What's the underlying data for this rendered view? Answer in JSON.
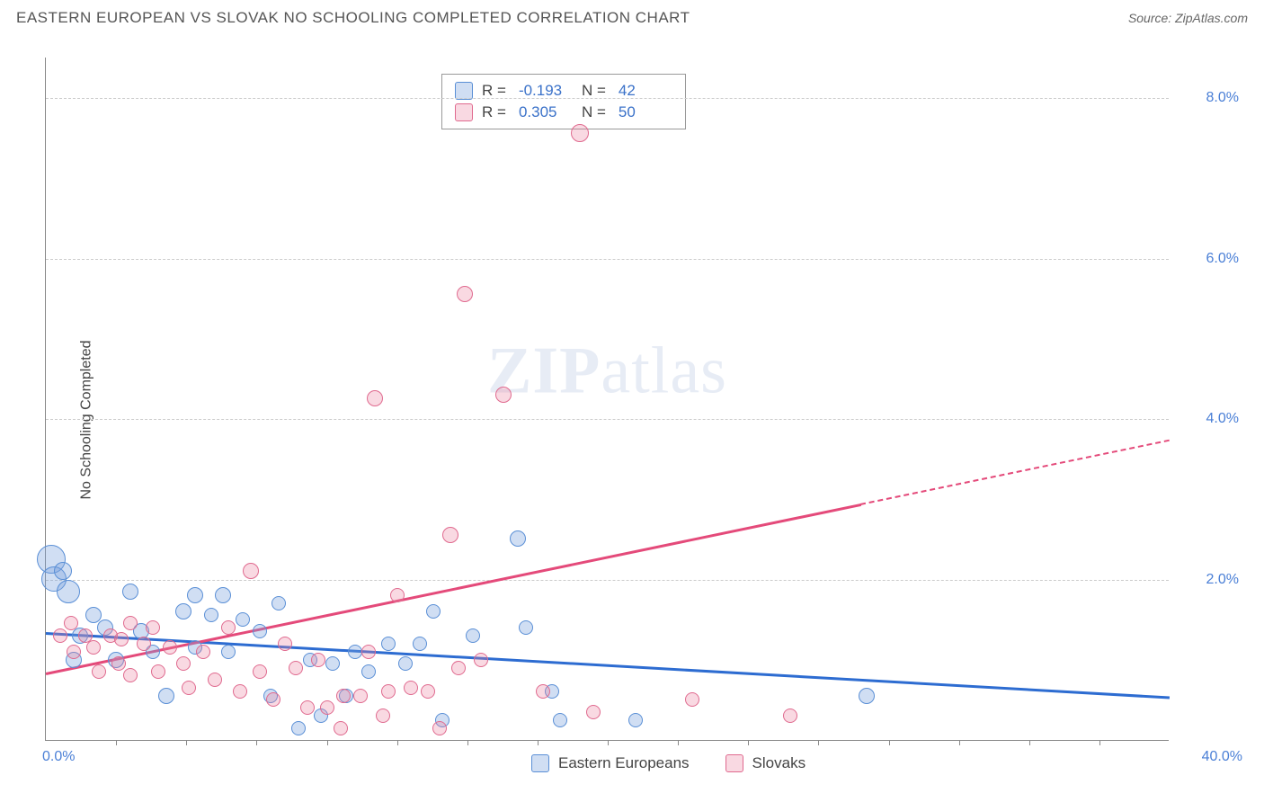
{
  "header": {
    "title": "EASTERN EUROPEAN VS SLOVAK NO SCHOOLING COMPLETED CORRELATION CHART",
    "source_label": "Source:",
    "source_name": "ZipAtlas.com"
  },
  "chart": {
    "type": "scatter",
    "ylabel": "No Schooling Completed",
    "xlim": [
      0,
      40
    ],
    "ylim": [
      0,
      8.5
    ],
    "x_ticks": [
      {
        "pos": 0,
        "label": "0.0%"
      },
      {
        "pos": 40,
        "label": "40.0%"
      }
    ],
    "y_ticks": [
      {
        "pos": 2,
        "label": "2.0%"
      },
      {
        "pos": 4,
        "label": "4.0%"
      },
      {
        "pos": 6,
        "label": "6.0%"
      },
      {
        "pos": 8,
        "label": "8.0%"
      }
    ],
    "x_minor_ticks_every": 2.5,
    "grid_color": "#cccccc",
    "background_color": "#ffffff",
    "watermark": "ZIPatlas",
    "series": [
      {
        "name": "Eastern Europeans",
        "fill": "rgba(120,160,220,0.35)",
        "stroke": "#5a8fd6",
        "color_solid": "#2d6cd1",
        "r_label": "R =",
        "r_value": "-0.193",
        "n_label": "N =",
        "n_value": "42",
        "trend": {
          "x1": 0,
          "y1": 1.35,
          "x2": 40,
          "y2": 0.55,
          "solid_until_x": 40
        },
        "points": [
          {
            "x": 0.2,
            "y": 2.25,
            "r": 16
          },
          {
            "x": 0.3,
            "y": 2.0,
            "r": 14
          },
          {
            "x": 0.6,
            "y": 2.1,
            "r": 10
          },
          {
            "x": 0.8,
            "y": 1.85,
            "r": 13
          },
          {
            "x": 1.2,
            "y": 1.3,
            "r": 9
          },
          {
            "x": 1.7,
            "y": 1.55,
            "r": 9
          },
          {
            "x": 1.0,
            "y": 1.0,
            "r": 9
          },
          {
            "x": 2.1,
            "y": 1.4,
            "r": 9
          },
          {
            "x": 2.5,
            "y": 1.0,
            "r": 9
          },
          {
            "x": 3.0,
            "y": 1.85,
            "r": 9
          },
          {
            "x": 3.4,
            "y": 1.35,
            "r": 9
          },
          {
            "x": 3.8,
            "y": 1.1,
            "r": 8
          },
          {
            "x": 4.3,
            "y": 0.55,
            "r": 9
          },
          {
            "x": 4.9,
            "y": 1.6,
            "r": 9
          },
          {
            "x": 5.3,
            "y": 1.8,
            "r": 9
          },
          {
            "x": 5.3,
            "y": 1.15,
            "r": 8
          },
          {
            "x": 5.9,
            "y": 1.55,
            "r": 8
          },
          {
            "x": 6.3,
            "y": 1.8,
            "r": 9
          },
          {
            "x": 6.5,
            "y": 1.1,
            "r": 8
          },
          {
            "x": 7.0,
            "y": 1.5,
            "r": 8
          },
          {
            "x": 7.6,
            "y": 1.35,
            "r": 8
          },
          {
            "x": 8.0,
            "y": 0.55,
            "r": 8
          },
          {
            "x": 8.3,
            "y": 1.7,
            "r": 8
          },
          {
            "x": 9.0,
            "y": 0.15,
            "r": 8
          },
          {
            "x": 9.4,
            "y": 1.0,
            "r": 8
          },
          {
            "x": 10.2,
            "y": 0.95,
            "r": 8
          },
          {
            "x": 10.7,
            "y": 0.55,
            "r": 8
          },
          {
            "x": 11.0,
            "y": 1.1,
            "r": 8
          },
          {
            "x": 11.5,
            "y": 0.85,
            "r": 8
          },
          {
            "x": 12.2,
            "y": 1.2,
            "r": 8
          },
          {
            "x": 12.8,
            "y": 0.95,
            "r": 8
          },
          {
            "x": 13.3,
            "y": 1.2,
            "r": 8
          },
          {
            "x": 13.8,
            "y": 1.6,
            "r": 8
          },
          {
            "x": 14.1,
            "y": 0.25,
            "r": 8
          },
          {
            "x": 15.2,
            "y": 1.3,
            "r": 8
          },
          {
            "x": 16.8,
            "y": 2.5,
            "r": 9
          },
          {
            "x": 17.1,
            "y": 1.4,
            "r": 8
          },
          {
            "x": 18.0,
            "y": 0.6,
            "r": 8
          },
          {
            "x": 18.3,
            "y": 0.25,
            "r": 8
          },
          {
            "x": 21.0,
            "y": 0.25,
            "r": 8
          },
          {
            "x": 29.2,
            "y": 0.55,
            "r": 9
          },
          {
            "x": 9.8,
            "y": 0.3,
            "r": 8
          }
        ]
      },
      {
        "name": "Slovaks",
        "fill": "rgba(235,130,160,0.30)",
        "stroke": "#e06a8f",
        "color_solid": "#e44a7a",
        "r_label": "R =",
        "r_value": "0.305",
        "n_label": "N =",
        "n_value": "50",
        "trend": {
          "x1": 0,
          "y1": 0.85,
          "x2": 40,
          "y2": 3.75,
          "solid_until_x": 29
        },
        "points": [
          {
            "x": 0.5,
            "y": 1.3,
            "r": 8
          },
          {
            "x": 0.9,
            "y": 1.45,
            "r": 8
          },
          {
            "x": 1.0,
            "y": 1.1,
            "r": 8
          },
          {
            "x": 1.4,
            "y": 1.3,
            "r": 8
          },
          {
            "x": 1.7,
            "y": 1.15,
            "r": 8
          },
          {
            "x": 1.9,
            "y": 0.85,
            "r": 8
          },
          {
            "x": 2.3,
            "y": 1.3,
            "r": 8
          },
          {
            "x": 2.6,
            "y": 0.95,
            "r": 8
          },
          {
            "x": 2.7,
            "y": 1.25,
            "r": 8
          },
          {
            "x": 3.0,
            "y": 1.45,
            "r": 8
          },
          {
            "x": 3.0,
            "y": 0.8,
            "r": 8
          },
          {
            "x": 3.5,
            "y": 1.2,
            "r": 8
          },
          {
            "x": 3.8,
            "y": 1.4,
            "r": 8
          },
          {
            "x": 4.0,
            "y": 0.85,
            "r": 8
          },
          {
            "x": 4.4,
            "y": 1.15,
            "r": 8
          },
          {
            "x": 4.9,
            "y": 0.95,
            "r": 8
          },
          {
            "x": 5.1,
            "y": 0.65,
            "r": 8
          },
          {
            "x": 5.6,
            "y": 1.1,
            "r": 8
          },
          {
            "x": 6.0,
            "y": 0.75,
            "r": 8
          },
          {
            "x": 6.5,
            "y": 1.4,
            "r": 8
          },
          {
            "x": 6.9,
            "y": 0.6,
            "r": 8
          },
          {
            "x": 7.3,
            "y": 2.1,
            "r": 9
          },
          {
            "x": 7.6,
            "y": 0.85,
            "r": 8
          },
          {
            "x": 8.1,
            "y": 0.5,
            "r": 8
          },
          {
            "x": 8.5,
            "y": 1.2,
            "r": 8
          },
          {
            "x": 8.9,
            "y": 0.9,
            "r": 8
          },
          {
            "x": 9.3,
            "y": 0.4,
            "r": 8
          },
          {
            "x": 9.7,
            "y": 1.0,
            "r": 8
          },
          {
            "x": 10.0,
            "y": 0.4,
            "r": 8
          },
          {
            "x": 10.5,
            "y": 0.15,
            "r": 8
          },
          {
            "x": 10.6,
            "y": 0.55,
            "r": 8
          },
          {
            "x": 11.2,
            "y": 0.55,
            "r": 8
          },
          {
            "x": 11.5,
            "y": 1.1,
            "r": 8
          },
          {
            "x": 11.7,
            "y": 4.25,
            "r": 9
          },
          {
            "x": 12.0,
            "y": 0.3,
            "r": 8
          },
          {
            "x": 12.2,
            "y": 0.6,
            "r": 8
          },
          {
            "x": 12.5,
            "y": 1.8,
            "r": 8
          },
          {
            "x": 13.0,
            "y": 0.65,
            "r": 8
          },
          {
            "x": 13.6,
            "y": 0.6,
            "r": 8
          },
          {
            "x": 14.4,
            "y": 2.55,
            "r": 9
          },
          {
            "x": 14.7,
            "y": 0.9,
            "r": 8
          },
          {
            "x": 14.9,
            "y": 5.55,
            "r": 9
          },
          {
            "x": 15.5,
            "y": 1.0,
            "r": 8
          },
          {
            "x": 16.3,
            "y": 4.3,
            "r": 9
          },
          {
            "x": 17.7,
            "y": 0.6,
            "r": 8
          },
          {
            "x": 19.0,
            "y": 7.55,
            "r": 10
          },
          {
            "x": 19.5,
            "y": 0.35,
            "r": 8
          },
          {
            "x": 23.0,
            "y": 0.5,
            "r": 8
          },
          {
            "x": 26.5,
            "y": 0.3,
            "r": 8
          },
          {
            "x": 14.0,
            "y": 0.15,
            "r": 8
          }
        ]
      }
    ],
    "legend_bottom": [
      {
        "label": "Eastern Europeans",
        "series_idx": 0
      },
      {
        "label": "Slovaks",
        "series_idx": 1
      }
    ]
  }
}
